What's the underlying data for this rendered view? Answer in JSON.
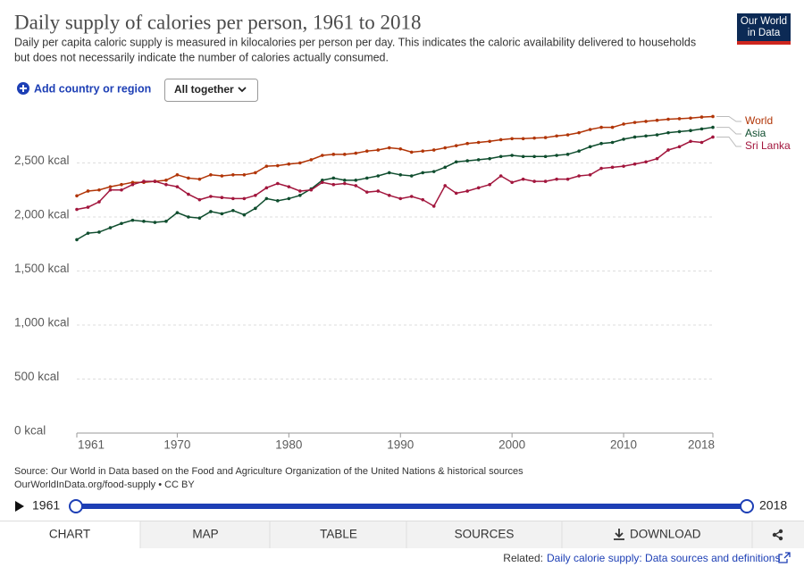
{
  "logo": [
    "Our World",
    "in Data"
  ],
  "controls": {
    "add": "Add country or region",
    "mode": "All together"
  },
  "chart_data": {
    "type": "line",
    "title": "Daily supply of calories per person, 1961 to 2018",
    "subtitle": [
      "Daily per capita caloric supply is measured in kilocalories per person per day. This indicates the caloric availability delivered to households",
      "but does not necessarily indicate the number of calories actually consumed."
    ],
    "x": [
      1961,
      1962,
      1963,
      1964,
      1965,
      1966,
      1967,
      1968,
      1969,
      1970,
      1971,
      1972,
      1973,
      1974,
      1975,
      1976,
      1977,
      1978,
      1979,
      1980,
      1981,
      1982,
      1983,
      1984,
      1985,
      1986,
      1987,
      1988,
      1989,
      1990,
      1991,
      1992,
      1993,
      1994,
      1995,
      1996,
      1997,
      1998,
      1999,
      2000,
      2001,
      2002,
      2003,
      2004,
      2005,
      2006,
      2007,
      2008,
      2009,
      2010,
      2011,
      2012,
      2013,
      2014,
      2015,
      2016,
      2017,
      2018
    ],
    "series": [
      {
        "name": "World",
        "color": "#b13507",
        "values": [
          2196,
          2240,
          2250,
          2280,
          2300,
          2320,
          2320,
          2330,
          2340,
          2390,
          2360,
          2350,
          2390,
          2380,
          2390,
          2390,
          2410,
          2470,
          2475,
          2490,
          2500,
          2530,
          2570,
          2580,
          2580,
          2590,
          2610,
          2620,
          2640,
          2630,
          2600,
          2610,
          2620,
          2640,
          2660,
          2680,
          2690,
          2700,
          2715,
          2725,
          2725,
          2730,
          2735,
          2750,
          2760,
          2780,
          2810,
          2830,
          2830,
          2860,
          2875,
          2885,
          2895,
          2905,
          2910,
          2915,
          2925,
          2930
        ]
      },
      {
        "name": "Asia",
        "color": "#0f4d2e",
        "values": [
          1790,
          1850,
          1860,
          1900,
          1940,
          1970,
          1960,
          1950,
          1960,
          2040,
          2000,
          1990,
          2050,
          2030,
          2060,
          2020,
          2080,
          2170,
          2150,
          2170,
          2200,
          2260,
          2340,
          2360,
          2340,
          2340,
          2360,
          2380,
          2410,
          2390,
          2380,
          2410,
          2420,
          2460,
          2510,
          2520,
          2530,
          2540,
          2560,
          2570,
          2560,
          2560,
          2560,
          2570,
          2580,
          2610,
          2650,
          2680,
          2690,
          2720,
          2740,
          2750,
          2760,
          2780,
          2790,
          2800,
          2815,
          2830
        ]
      },
      {
        "name": "Sri Lanka",
        "color": "#a2163d",
        "values": [
          2070,
          2090,
          2140,
          2250,
          2250,
          2300,
          2330,
          2330,
          2300,
          2280,
          2210,
          2160,
          2190,
          2180,
          2170,
          2170,
          2200,
          2270,
          2310,
          2280,
          2240,
          2250,
          2320,
          2300,
          2310,
          2290,
          2230,
          2240,
          2200,
          2170,
          2190,
          2160,
          2100,
          2290,
          2220,
          2240,
          2270,
          2300,
          2380,
          2320,
          2350,
          2330,
          2330,
          2350,
          2350,
          2380,
          2390,
          2450,
          2460,
          2470,
          2490,
          2510,
          2540,
          2620,
          2650,
          2700,
          2690,
          2740
        ]
      }
    ],
    "xlim": [
      1961,
      2018
    ],
    "xticks": [
      1961,
      1970,
      1980,
      1990,
      2000,
      2010,
      2018
    ],
    "ylim": [
      0,
      3000
    ],
    "yticks": [
      {
        "value": 0,
        "label": "0 kcal"
      },
      {
        "value": 500,
        "label": "500 kcal"
      },
      {
        "value": 1000,
        "label": "1,000 kcal"
      },
      {
        "value": 1500,
        "label": "1,500 kcal"
      },
      {
        "value": 2000,
        "label": "2,000 kcal"
      },
      {
        "value": 2500,
        "label": "2,500 kcal"
      }
    ],
    "grid": true,
    "source": [
      "Source: Our World in Data based on the Food and Agriculture Organization of the United Nations & historical sources",
      "OurWorldInData.org/food-supply • CC BY"
    ]
  },
  "timeline": {
    "start": 1961,
    "end": 2018
  },
  "tabs": [
    "CHART",
    "MAP",
    "TABLE",
    "SOURCES",
    "DOWNLOAD"
  ],
  "related": {
    "label": "Related:",
    "link": "Daily calorie supply: Data sources and definitions"
  }
}
